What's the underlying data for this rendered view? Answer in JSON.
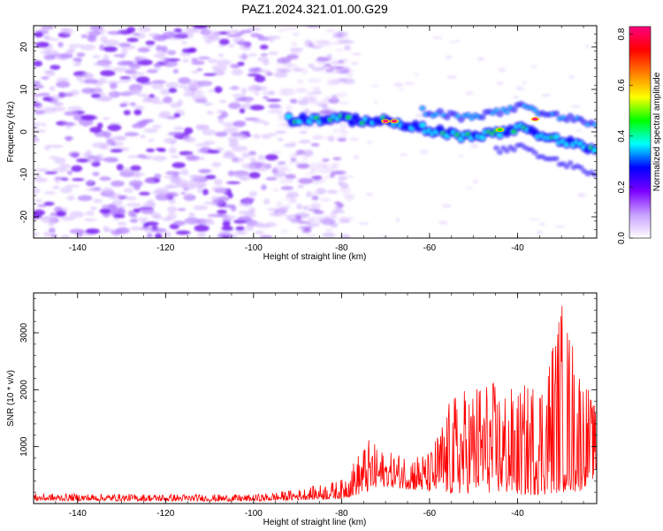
{
  "title": "PAZ1.2024.321.01.00.G29",
  "chart_data": [
    {
      "type": "heatmap",
      "xlabel": "Height of straight line (km)",
      "ylabel": "Frequency (Hz)",
      "xlim": [
        -150,
        -22
      ],
      "ylim": [
        -25,
        25
      ],
      "x_ticks": [
        -140,
        -120,
        -100,
        -80,
        -60,
        -40
      ],
      "y_ticks": [
        -20,
        -10,
        0,
        10,
        20
      ],
      "colorbar": {
        "label": "Normalized spectral amplitude",
        "range": [
          0,
          0.83
        ],
        "ticks": [
          0.0,
          0.2,
          0.4,
          0.6,
          0.8
        ],
        "colors": [
          "#ffffff",
          "#c8a0ff",
          "#7b00ff",
          "#0000ff",
          "#00ffff",
          "#00ff00",
          "#ffff00",
          "#ff8000",
          "#ff0000",
          "#ff0080"
        ]
      },
      "ridge": [
        {
          "x": -92,
          "freq": 3.0
        },
        {
          "x": -80,
          "freq": 3.0
        },
        {
          "x": -70,
          "freq": 2.5
        },
        {
          "x": -60,
          "freq": 0.5
        },
        {
          "x": -50,
          "freq": -1.5
        },
        {
          "x": -40,
          "freq": 1.0
        },
        {
          "x": -30,
          "freq": -2.0
        },
        {
          "x": -22,
          "freq": -4.0
        }
      ],
      "hotspots": [
        {
          "x": -70,
          "freq": 2.5,
          "amp": 0.75
        },
        {
          "x": -68,
          "freq": 2.5,
          "amp": 0.8
        },
        {
          "x": -36,
          "freq": 3.0,
          "amp": 0.75
        },
        {
          "x": -44,
          "freq": 0.5,
          "amp": 0.45
        }
      ]
    },
    {
      "type": "line",
      "xlabel": "Height of straight line (km)",
      "ylabel": "SNR (10 * v/v)",
      "xlim": [
        -150,
        -22
      ],
      "ylim": [
        0,
        3700
      ],
      "x_ticks": [
        -140,
        -120,
        -100,
        -80,
        -60,
        -40
      ],
      "y_ticks": [
        1000,
        2000,
        3000
      ],
      "series": [
        {
          "color": "#ff0000",
          "envelope": [
            {
              "x": -150,
              "lo": 50,
              "hi": 180
            },
            {
              "x": -100,
              "lo": 40,
              "hi": 160
            },
            {
              "x": -90,
              "lo": 60,
              "hi": 250
            },
            {
              "x": -80,
              "lo": 80,
              "hi": 420
            },
            {
              "x": -74,
              "lo": 200,
              "hi": 1150
            },
            {
              "x": -70,
              "lo": 300,
              "hi": 900
            },
            {
              "x": -60,
              "lo": 200,
              "hi": 900
            },
            {
              "x": -55,
              "lo": 150,
              "hi": 1900
            },
            {
              "x": -48,
              "lo": 200,
              "hi": 2250
            },
            {
              "x": -40,
              "lo": 150,
              "hi": 2000
            },
            {
              "x": -34,
              "lo": 150,
              "hi": 2400
            },
            {
              "x": -30,
              "lo": 200,
              "hi": 3650
            },
            {
              "x": -26,
              "lo": 200,
              "hi": 2600
            },
            {
              "x": -22,
              "lo": 500,
              "hi": 1600
            }
          ]
        }
      ]
    }
  ]
}
